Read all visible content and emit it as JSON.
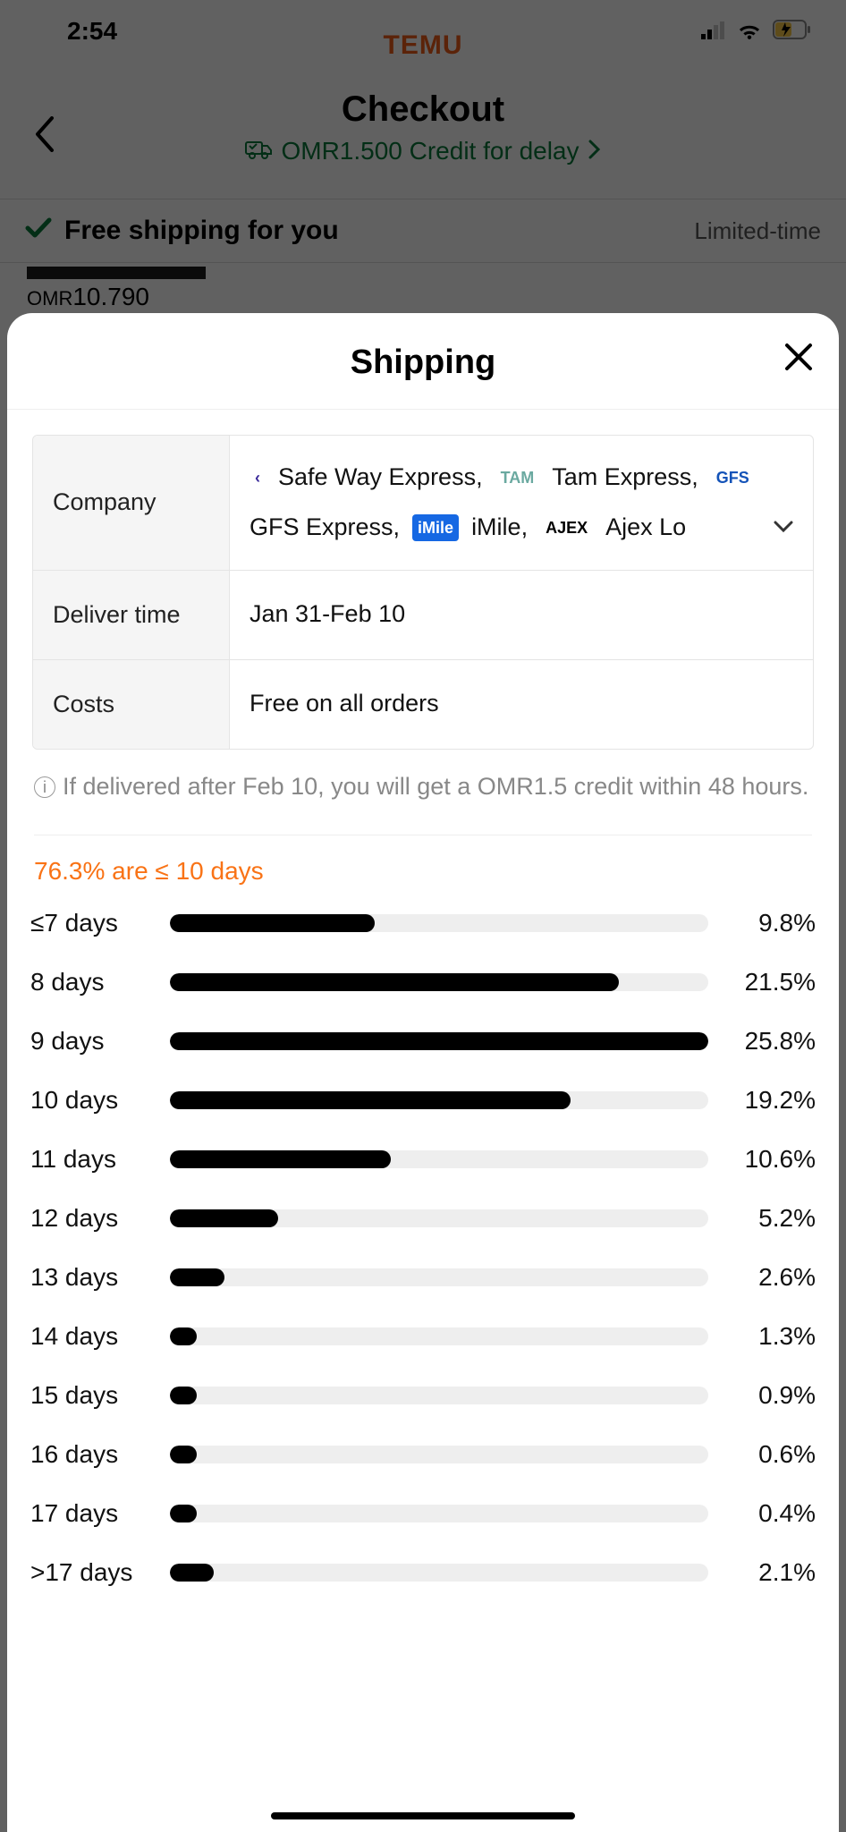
{
  "status": {
    "time": "2:54"
  },
  "brand": {
    "name": "TEMU",
    "color": "#ef5c1a"
  },
  "header": {
    "title": "Checkout",
    "credit_text": "OMR1.500 Credit for delay",
    "credit_color": "#0a7a3b"
  },
  "free_strip": {
    "text": "Free shipping for you",
    "badge": "Limited-time",
    "check_color": "#0a7a3b"
  },
  "bg_price": {
    "currency": "OMR",
    "amount": "10.790"
  },
  "sheet": {
    "title": "Shipping",
    "rows": {
      "company": {
        "label": "Company",
        "carriers": [
          {
            "logo_text": "‹",
            "logo_bg": "#ffffff",
            "logo_color": "#3a2a9a",
            "name": "Safe Way Express,"
          },
          {
            "logo_text": "TAM",
            "logo_bg": "#ffffff",
            "logo_color": "#6aa9a0",
            "name": "Tam Express,"
          },
          {
            "logo_text": "GFS",
            "logo_bg": "#ffffff",
            "logo_color": "#1453b8",
            "name": "GFS Express,"
          },
          {
            "logo_text": "iMile",
            "logo_bg": "#1668e3",
            "logo_color": "#ffffff",
            "name": "iMile,"
          },
          {
            "logo_text": "AJEX",
            "logo_bg": "#ffffff",
            "logo_color": "#000000",
            "name": "Ajex Lo"
          }
        ]
      },
      "deliver": {
        "label": "Deliver time",
        "value": "Jan 31-Feb 10"
      },
      "costs": {
        "label": "Costs",
        "value": "Free on all orders"
      }
    },
    "notice": "If delivered after Feb 10, you will get a OMR1.5 credit within 48 hours.",
    "dist": {
      "headline": "76.3% are ≤ 10 days",
      "headline_color": "#f97316",
      "bar_bg": "#eeeeee",
      "bar_fill": "#000000",
      "max_pct": 25.8,
      "rows": [
        {
          "label": "≤7 days",
          "pct": 9.8
        },
        {
          "label": "8 days",
          "pct": 21.5
        },
        {
          "label": "9 days",
          "pct": 25.8
        },
        {
          "label": "10 days",
          "pct": 19.2
        },
        {
          "label": "11 days",
          "pct": 10.6
        },
        {
          "label": "12 days",
          "pct": 5.2
        },
        {
          "label": "13 days",
          "pct": 2.6
        },
        {
          "label": "14 days",
          "pct": 1.3
        },
        {
          "label": "15 days",
          "pct": 0.9
        },
        {
          "label": "16 days",
          "pct": 0.6
        },
        {
          "label": "17 days",
          "pct": 0.4
        },
        {
          "label": ">17 days",
          "pct": 2.1
        }
      ]
    }
  }
}
